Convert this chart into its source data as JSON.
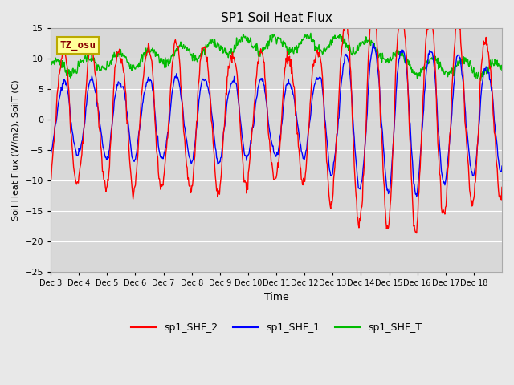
{
  "title": "SP1 Soil Heat Flux",
  "xlabel": "Time",
  "ylabel": "Soil Heat Flux (W/m2), SoilT (C)",
  "ylim": [
    -25,
    15
  ],
  "bg_color": "#e8e8e8",
  "plot_bg_color": "#d8d8d8",
  "grid_color": "#ffffff",
  "line_colors": {
    "shf2": "#ff0000",
    "shf1": "#0000ff",
    "shfT": "#00bb00"
  },
  "legend_labels": [
    "sp1_SHF_2",
    "sp1_SHF_1",
    "sp1_SHF_T"
  ],
  "annotation_text": "TZ_osu",
  "annotation_color": "#880000",
  "annotation_bg": "#ffff99",
  "annotation_border": "#bbaa00",
  "yticks": [
    -25,
    -20,
    -15,
    -10,
    -5,
    0,
    5,
    10,
    15
  ],
  "xtick_labels": [
    "Dec 3",
    "Dec 4",
    "Dec 5",
    "Dec 6",
    "Dec 7",
    "Dec 8",
    "Dec 9",
    "Dec 10",
    "Dec 11",
    "Dec 12",
    "Dec 13",
    "Dec 14",
    "Dec 15",
    "Dec 16",
    "Dec 17",
    "Dec 18"
  ],
  "n_days": 16,
  "pts_per_day": 48
}
